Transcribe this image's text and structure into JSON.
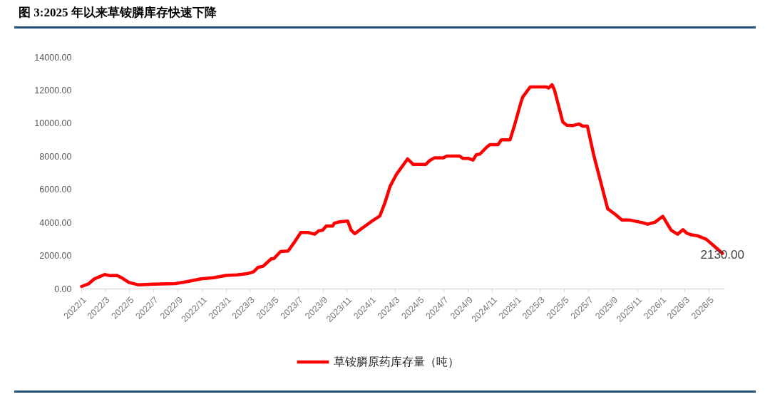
{
  "chart_data": {
    "type": "line",
    "title": "图 3:2025 年以来草铵膦库存快速下降",
    "x": [
      "2022-01-02",
      "2022-01-20",
      "2022-02-03",
      "2022-02-17",
      "2022-03-01",
      "2022-03-13",
      "2022-04-01",
      "2022-04-15",
      "2022-05-01",
      "2022-05-24",
      "2022-07-03",
      "2022-08-26",
      "2022-09-24",
      "2022-10-30",
      "2022-11-30",
      "2023-01-01",
      "2023-01-28",
      "2023-02-23",
      "2023-03-11",
      "2023-03-22",
      "2023-04-04",
      "2023-04-25",
      "2023-05-01",
      "2023-05-18",
      "2023-06-06",
      "2023-06-20",
      "2023-07-08",
      "2023-07-26",
      "2023-08-12",
      "2023-08-22",
      "2023-09-01",
      "2023-09-10",
      "2023-09-26",
      "2023-10-01",
      "2023-10-14",
      "2023-11-03",
      "2023-11-12",
      "2023-11-21",
      "2023-12-07",
      "2023-12-17",
      "2024-01-05",
      "2024-01-23",
      "2024-02-05",
      "2024-02-18",
      "2024-03-05",
      "2024-04-02",
      "2024-04-16",
      "2024-05-18",
      "2024-05-27",
      "2024-06-09",
      "2024-07-01",
      "2024-07-10",
      "2024-08-11",
      "2024-08-20",
      "2024-09-03",
      "2024-09-14",
      "2024-09-22",
      "2024-10-01",
      "2024-10-17",
      "2024-10-26",
      "2024-11-16",
      "2024-11-24",
      "2024-12-16",
      "2024-12-28",
      "2025-01-12",
      "2025-01-17",
      "2025-02-05",
      "2025-03-18",
      "2025-03-23",
      "2025-04-01",
      "2025-04-07",
      "2025-04-28",
      "2025-05-08",
      "2025-05-22",
      "2025-06-08",
      "2025-06-17",
      "2025-06-29",
      "2025-07-15",
      "2025-08-19",
      "2025-09-08",
      "2025-09-24",
      "2025-10-12",
      "2025-11-14",
      "2025-11-28",
      "2025-12-16",
      "2026-01-05",
      "2026-01-26",
      "2026-02-11",
      "2026-02-25",
      "2026-03-06",
      "2026-03-18",
      "2026-04-01",
      "2026-04-24",
      "2026-05-11",
      "2026-06-04"
    ],
    "series": [
      {
        "name": "草铵膦原药库存量（吨）",
        "color": "#ff0000",
        "values": [
          130,
          300,
          590,
          730,
          850,
          790,
          800,
          620,
          370,
          230,
          270,
          300,
          420,
          590,
          660,
          800,
          830,
          900,
          1020,
          1280,
          1350,
          1810,
          1810,
          2240,
          2270,
          2740,
          3390,
          3390,
          3290,
          3490,
          3530,
          3780,
          3780,
          3960,
          4040,
          4080,
          3530,
          3320,
          3610,
          3780,
          4110,
          4390,
          5190,
          6190,
          6910,
          7840,
          7510,
          7510,
          7730,
          7910,
          7910,
          8010,
          8010,
          7870,
          7870,
          7770,
          8090,
          8130,
          8520,
          8700,
          8700,
          8990,
          8990,
          9920,
          11210,
          11580,
          12190,
          12190,
          12120,
          12320,
          12010,
          10070,
          9880,
          9850,
          9950,
          9820,
          9820,
          8060,
          4830,
          4470,
          4150,
          4150,
          3990,
          3890,
          4010,
          4370,
          3530,
          3290,
          3560,
          3350,
          3250,
          3200,
          2990,
          2640,
          2130
        ]
      }
    ],
    "xlim": [
      "2022-01-01",
      "2026-06-09"
    ],
    "xticks": [
      {
        "value": "2022-01-01",
        "label": "2022/1"
      },
      {
        "value": "2022-03-01",
        "label": "2022/3"
      },
      {
        "value": "2022-05-01",
        "label": "2022/5"
      },
      {
        "value": "2022-07-01",
        "label": "2022/7"
      },
      {
        "value": "2022-09-01",
        "label": "2022/9"
      },
      {
        "value": "2022-11-01",
        "label": "2022/11"
      },
      {
        "value": "2023-01-01",
        "label": "2023/1"
      },
      {
        "value": "2023-03-01",
        "label": "2023/3"
      },
      {
        "value": "2023-05-01",
        "label": "2023/5"
      },
      {
        "value": "2023-07-01",
        "label": "2023/7"
      },
      {
        "value": "2023-09-01",
        "label": "2023/9"
      },
      {
        "value": "2023-11-01",
        "label": "2023/11"
      },
      {
        "value": "2024-01-01",
        "label": "2024/1"
      },
      {
        "value": "2024-03-01",
        "label": "2024/3"
      },
      {
        "value": "2024-05-01",
        "label": "2024/5"
      },
      {
        "value": "2024-07-01",
        "label": "2024/7"
      },
      {
        "value": "2024-09-01",
        "label": "2024/9"
      },
      {
        "value": "2024-11-01",
        "label": "2024/11"
      },
      {
        "value": "2025-01-01",
        "label": "2025/1"
      },
      {
        "value": "2025-03-01",
        "label": "2025/3"
      },
      {
        "value": "2025-05-01",
        "label": "2025/5"
      },
      {
        "value": "2025-07-01",
        "label": "2025/7"
      },
      {
        "value": "2025-09-01",
        "label": "2025/9"
      },
      {
        "value": "2025-11-01",
        "label": "2025/11"
      },
      {
        "value": "2026-01-01",
        "label": "2026/1"
      },
      {
        "value": "2026-03-01",
        "label": "2026/3"
      },
      {
        "value": "2026-05-01",
        "label": "2026/5"
      }
    ],
    "ylim": [
      0,
      14000
    ],
    "yticks": [
      {
        "value": 0,
        "label": "0.00"
      },
      {
        "value": 2000,
        "label": "2000.00"
      },
      {
        "value": 4000,
        "label": "4000.00"
      },
      {
        "value": 6000,
        "label": "6000.00"
      },
      {
        "value": 8000,
        "label": "8000.00"
      },
      {
        "value": 10000,
        "label": "10000.00"
      },
      {
        "value": 12000,
        "label": "12000.00"
      },
      {
        "value": 14000,
        "label": "14000.00"
      }
    ],
    "annotations": [
      {
        "text": "2130.00",
        "x": "2026-06-04",
        "y": 2130
      }
    ],
    "legend": "bottom",
    "grid": false
  }
}
